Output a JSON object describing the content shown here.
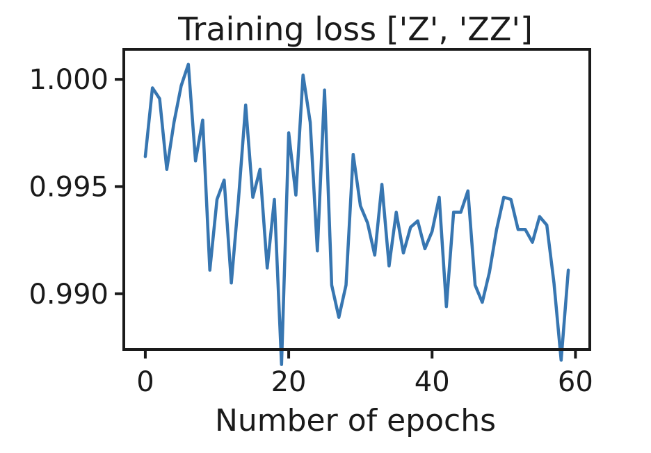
{
  "chart_data": {
    "type": "line",
    "title": "Training loss ['Z', 'ZZ']",
    "xlabel": "Number of epochs",
    "ylabel": "",
    "xlim": [
      -3,
      62
    ],
    "ylim": [
      0.9874,
      1.0014
    ],
    "xticks": [
      0,
      20,
      40,
      60
    ],
    "xtick_labels": [
      "0",
      "20",
      "40",
      "60"
    ],
    "yticks": [
      0.99,
      0.995,
      1.0
    ],
    "ytick_labels": [
      "0.990",
      "0.995",
      "1.000"
    ],
    "grid": false,
    "series": [
      {
        "color": "#3776b1",
        "x": [
          0,
          1,
          2,
          3,
          4,
          5,
          6,
          7,
          8,
          9,
          10,
          11,
          12,
          13,
          14,
          15,
          16,
          17,
          18,
          19,
          20,
          21,
          22,
          23,
          24,
          25,
          26,
          27,
          28,
          29,
          30,
          31,
          32,
          33,
          34,
          35,
          36,
          37,
          38,
          39,
          40,
          41,
          42,
          43,
          44,
          45,
          46,
          47,
          48,
          49,
          50,
          51,
          52,
          53,
          54,
          55,
          56,
          57,
          58,
          59
        ],
        "y": [
          0.9964,
          0.9996,
          0.9991,
          0.9958,
          0.998,
          0.9997,
          1.0007,
          0.9962,
          0.9981,
          0.9911,
          0.9944,
          0.9953,
          0.9905,
          0.9944,
          0.9988,
          0.9945,
          0.9958,
          0.9912,
          0.9944,
          0.9867,
          0.9975,
          0.9946,
          1.0002,
          0.998,
          0.992,
          0.9995,
          0.9904,
          0.9889,
          0.9904,
          0.9965,
          0.9941,
          0.9933,
          0.9918,
          0.9951,
          0.9913,
          0.9938,
          0.9919,
          0.9931,
          0.9934,
          0.9921,
          0.9929,
          0.9945,
          0.9894,
          0.9938,
          0.9938,
          0.9948,
          0.9904,
          0.9896,
          0.991,
          0.993,
          0.9945,
          0.9944,
          0.993,
          0.993,
          0.9924,
          0.9936,
          0.9932,
          0.9905,
          0.9869,
          0.9911
        ]
      }
    ]
  }
}
